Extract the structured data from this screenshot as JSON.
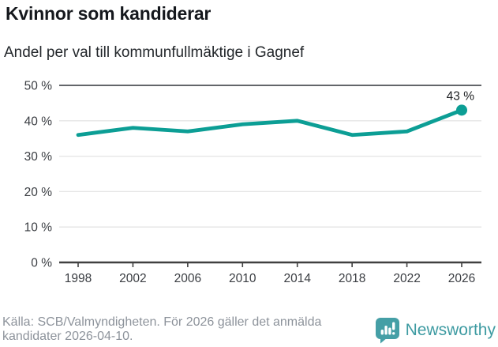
{
  "header": {
    "title": "Kvinnor som kandiderar",
    "subtitle": "Andel per val till kommunfullmäktige i Gagnef"
  },
  "chart_data": {
    "type": "line",
    "title": "Kvinnor som kandiderar",
    "subtitle": "Andel per val till kommunfullmäktige i Gagnef",
    "categories": [
      1998,
      2002,
      2006,
      2010,
      2014,
      2018,
      2022,
      2026
    ],
    "values": [
      36,
      38,
      37,
      39,
      40,
      36,
      37,
      43
    ],
    "unit": "%",
    "ylim": [
      0,
      50
    ],
    "yticks": [
      0,
      10,
      20,
      30,
      40,
      50
    ],
    "ytick_suffix": " %",
    "grid": true,
    "legend": "none",
    "annotation": {
      "category": 2026,
      "value": 43,
      "label": "43 %"
    },
    "last_point_marker": true
  },
  "footer": {
    "source": "Källa: SCB/Valmyndigheten. För 2026 gäller det anmälda kandidater 2026-04-10.",
    "brand": "Newsworthy"
  },
  "colors": {
    "line": "#0c9e95",
    "grid": "#e4e4e4",
    "frame_top": "#63666a",
    "axis": "#404040",
    "tick_label": "#3a3d42",
    "annotation_text": "#1c1e21",
    "brand": "#459fa6",
    "footer_text": "#8d939b"
  }
}
